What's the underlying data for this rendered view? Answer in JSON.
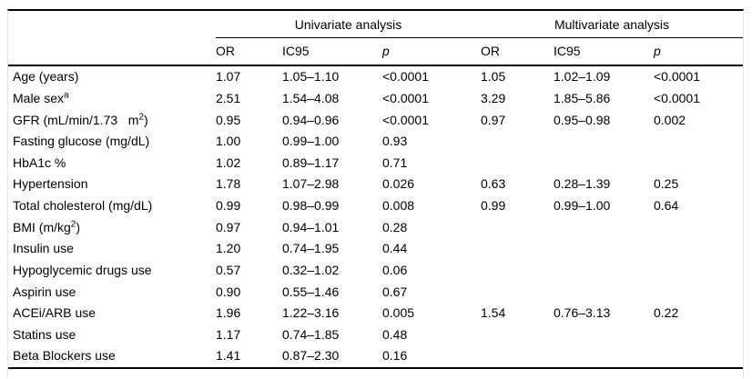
{
  "colors": {
    "rule": "#000000",
    "frame_border": "#e4e4e4"
  },
  "table": {
    "header": {
      "group1": "Univariate analysis",
      "group2": "Multivariate analysis",
      "cols": [
        "OR",
        "IC95",
        "p",
        "OR",
        "IC95",
        "p"
      ]
    },
    "rows": [
      {
        "label": [
          {
            "t": "Age (years)"
          }
        ],
        "cells": [
          "1.07",
          "1.05–1.10",
          "<0.0001",
          "1.05",
          "1.02–1.09",
          "<0.0001"
        ]
      },
      {
        "label": [
          {
            "t": "Male sex"
          },
          {
            "t": "a",
            "sup": true
          }
        ],
        "cells": [
          "2.51",
          "1.54–4.08",
          "<0.0001",
          "3.29",
          "1.85–5.86",
          "<0.0001"
        ]
      },
      {
        "label": [
          {
            "t": "GFR (mL/min/1.73   m"
          },
          {
            "t": "2",
            "sup": true
          },
          {
            "t": ")"
          }
        ],
        "cells": [
          "0.95",
          "0.94–0.96",
          "<0.0001",
          "0.97",
          "0.95–0.98",
          "0.002"
        ]
      },
      {
        "label": [
          {
            "t": "Fasting glucose (mg/dL)"
          }
        ],
        "cells": [
          "1.00",
          "0.99–1.00",
          "0.93",
          "",
          "",
          ""
        ]
      },
      {
        "label": [
          {
            "t": "HbA1c %"
          }
        ],
        "cells": [
          "1.02",
          "0.89–1.17",
          "0.71",
          "",
          "",
          ""
        ]
      },
      {
        "label": [
          {
            "t": "Hypertension"
          }
        ],
        "cells": [
          "1.78",
          "1.07–2.98",
          "0.026",
          "0.63",
          "0.28–1.39",
          "0.25"
        ]
      },
      {
        "label": [
          {
            "t": "Total cholesterol (mg/dL)"
          }
        ],
        "cells": [
          "0.99",
          "0.98–0.99",
          "0.008",
          "0.99",
          "0.99–1.00",
          "0.64"
        ]
      },
      {
        "label": [
          {
            "t": "BMI (m/kg"
          },
          {
            "t": "2",
            "sup": true
          },
          {
            "t": ")"
          }
        ],
        "cells": [
          "0.97",
          "0.94–1.01",
          "0.28",
          "",
          "",
          ""
        ]
      },
      {
        "label": [
          {
            "t": "Insulin use"
          }
        ],
        "cells": [
          "1.20",
          "0.74–1.95",
          "0.44",
          "",
          "",
          ""
        ]
      },
      {
        "label": [
          {
            "t": "Hypoglycemic drugs use"
          }
        ],
        "cells": [
          "0.57",
          "0.32–1.02",
          "0.06",
          "",
          "",
          ""
        ]
      },
      {
        "label": [
          {
            "t": "Aspirin use"
          }
        ],
        "cells": [
          "0.90",
          "0.55–1.46",
          "0.67",
          "",
          "",
          ""
        ]
      },
      {
        "label": [
          {
            "t": "ACEi/ARB use"
          }
        ],
        "cells": [
          "1.96",
          "1.22–3.16",
          "0.005",
          "1.54",
          "0.76–3.13",
          "0.22"
        ]
      },
      {
        "label": [
          {
            "t": "Statins use"
          }
        ],
        "cells": [
          "1.17",
          "0.74–1.85",
          "0.48",
          "",
          "",
          ""
        ]
      },
      {
        "label": [
          {
            "t": "Beta Blockers use"
          }
        ],
        "cells": [
          "1.41",
          "0.87–2.30",
          "0.16",
          "",
          "",
          ""
        ]
      }
    ]
  }
}
